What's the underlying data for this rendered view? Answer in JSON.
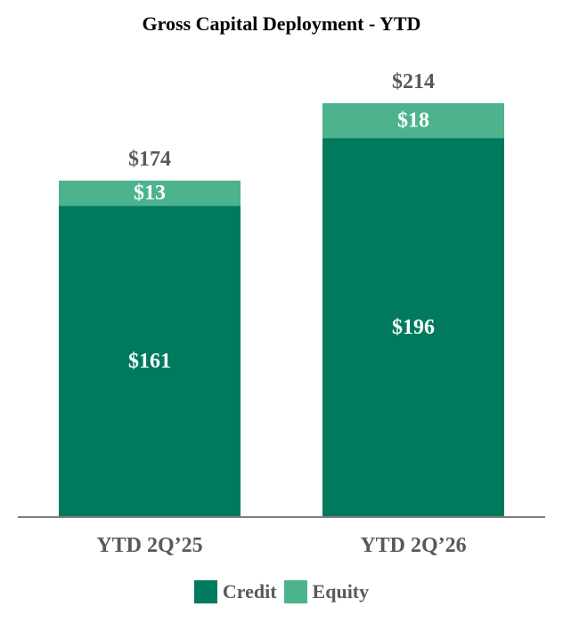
{
  "chart_data": {
    "type": "bar",
    "stacked": true,
    "title": "Gross Capital Deployment - YTD",
    "categories": [
      "YTD 2Q’25",
      "YTD 2Q’26"
    ],
    "series": [
      {
        "name": "Credit",
        "values": [
          161,
          196
        ],
        "labels": [
          "$161",
          "$196"
        ],
        "color": "#007a5e"
      },
      {
        "name": "Equity",
        "values": [
          13,
          18
        ],
        "labels": [
          "$13",
          "$18"
        ],
        "color": "#4cb38c"
      }
    ],
    "totals": [
      174,
      214
    ],
    "total_labels": [
      "$174",
      "$214"
    ],
    "ylim": [
      0,
      214
    ],
    "legend_position": "bottom",
    "grid": false,
    "axis_color": "#7f7f7f",
    "total_label_color": "#595959",
    "category_label_color": "#595959"
  }
}
